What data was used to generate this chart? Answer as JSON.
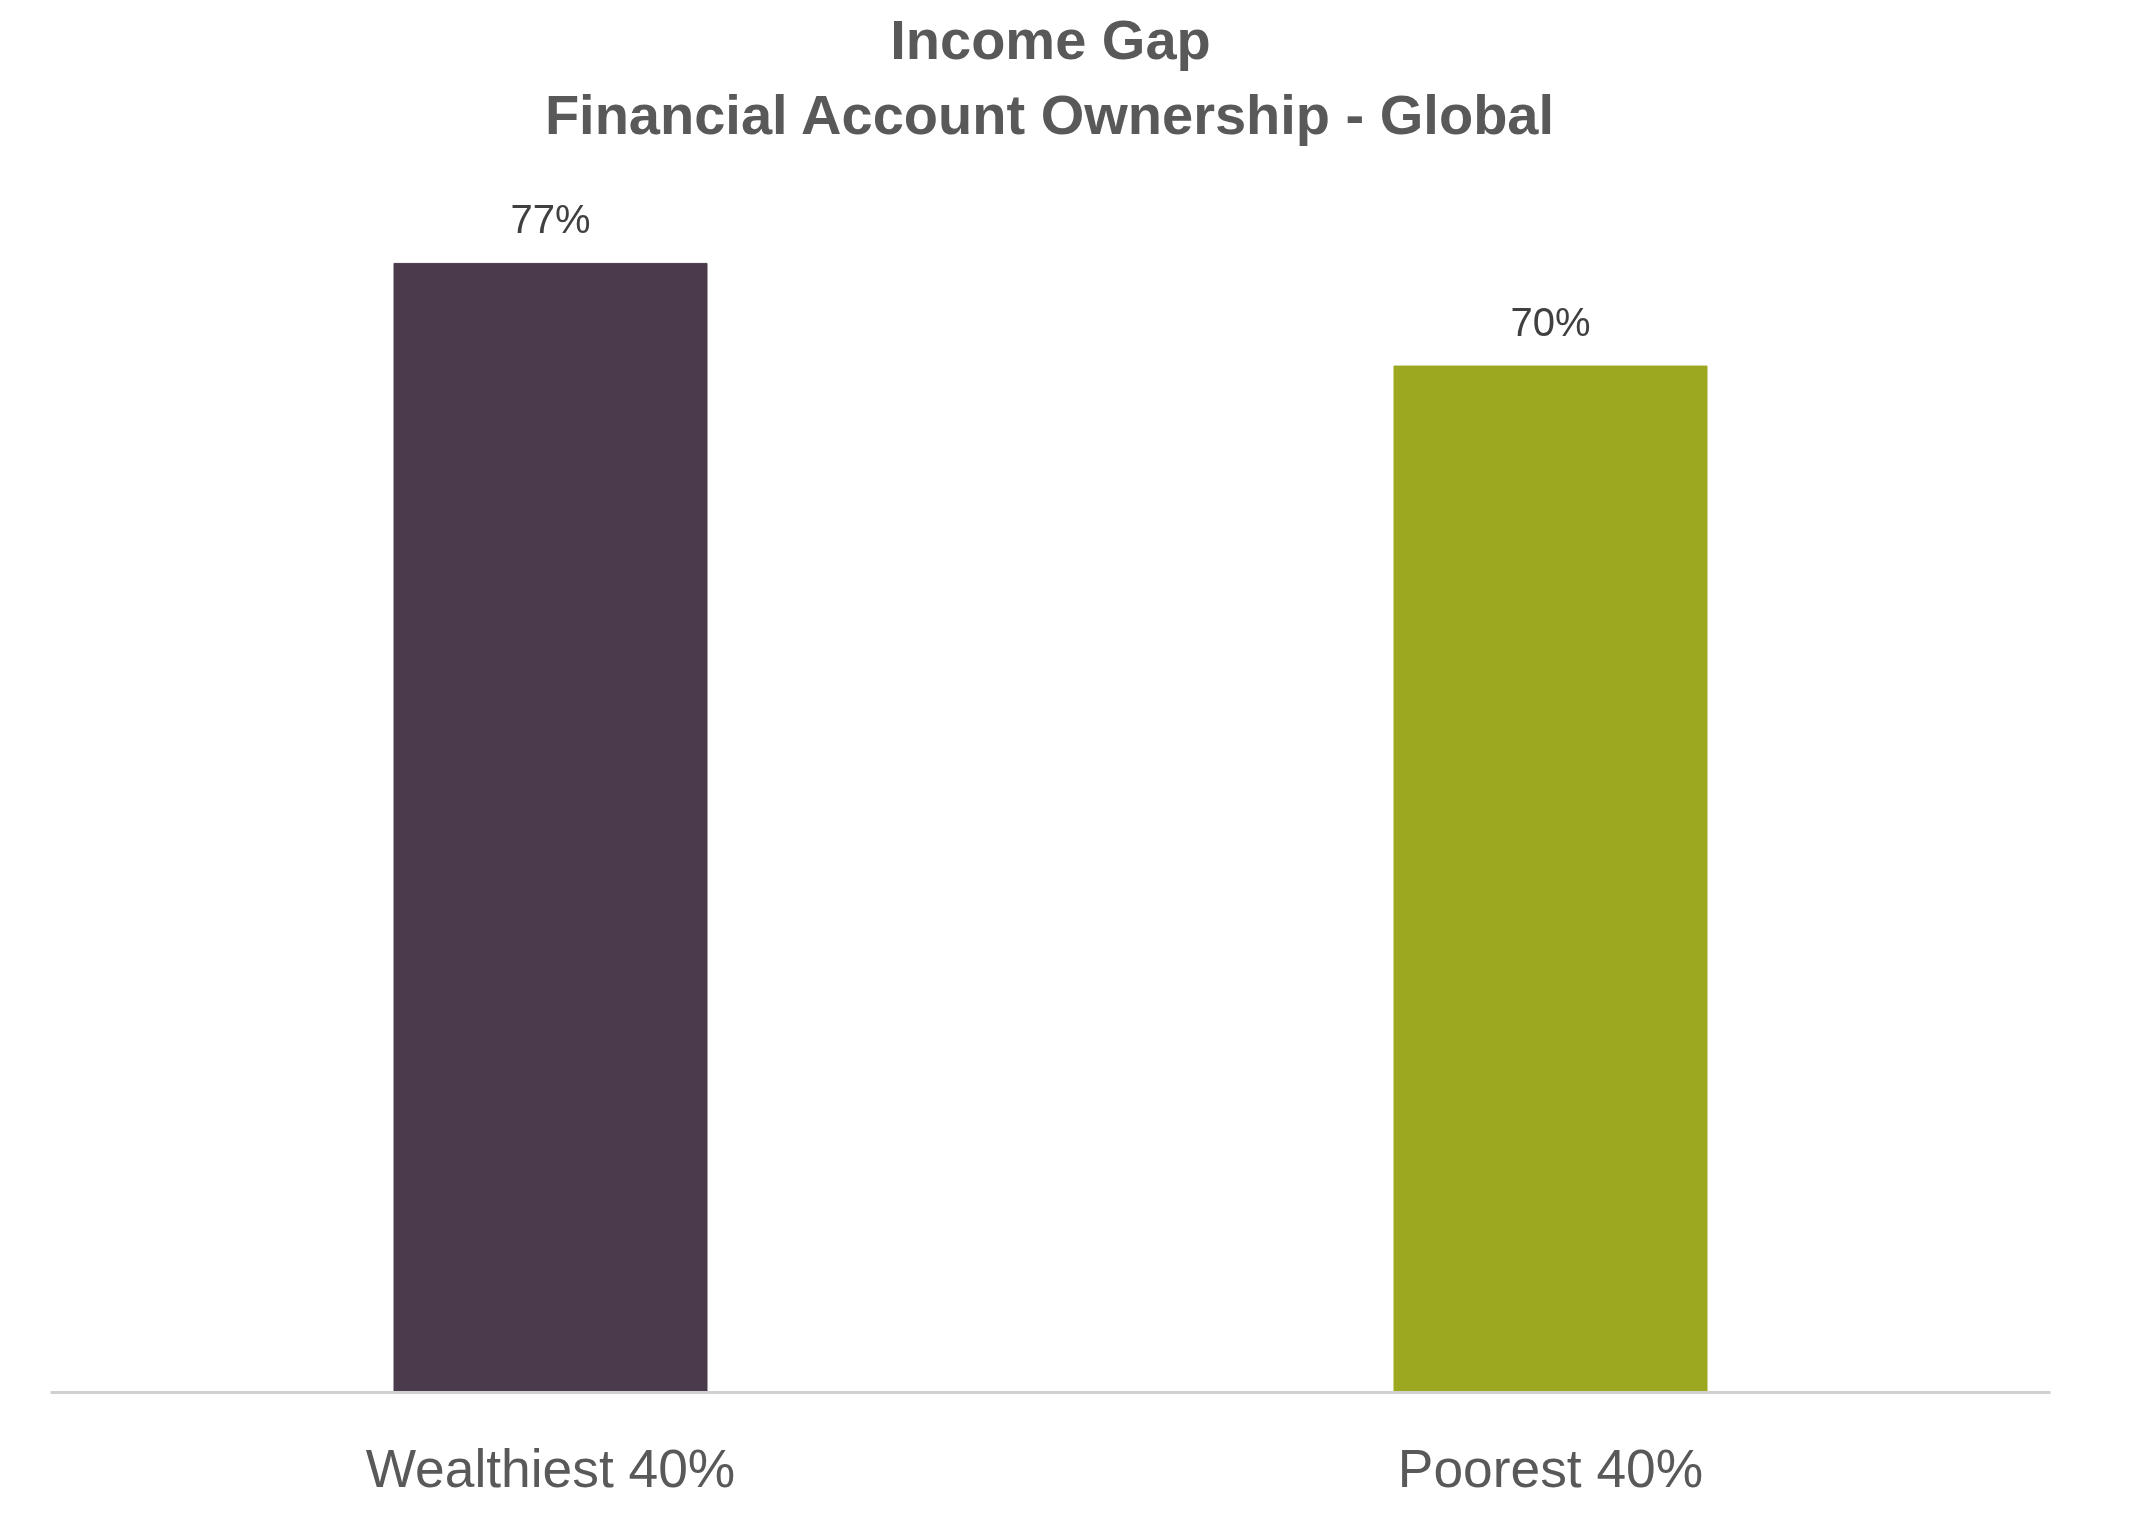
{
  "chart_data": {
    "type": "bar",
    "title": "Income Gap",
    "subtitle": "Financial Account Ownership - Global",
    "categories": [
      "Wealthiest 40%",
      "Poorest 40%"
    ],
    "values": [
      77,
      70
    ],
    "colors": [
      "#4b3a4b",
      "#9ca81f"
    ],
    "value_labels": [
      "77%",
      "70%"
    ],
    "tick_labels": "x",
    "grid": false
  }
}
